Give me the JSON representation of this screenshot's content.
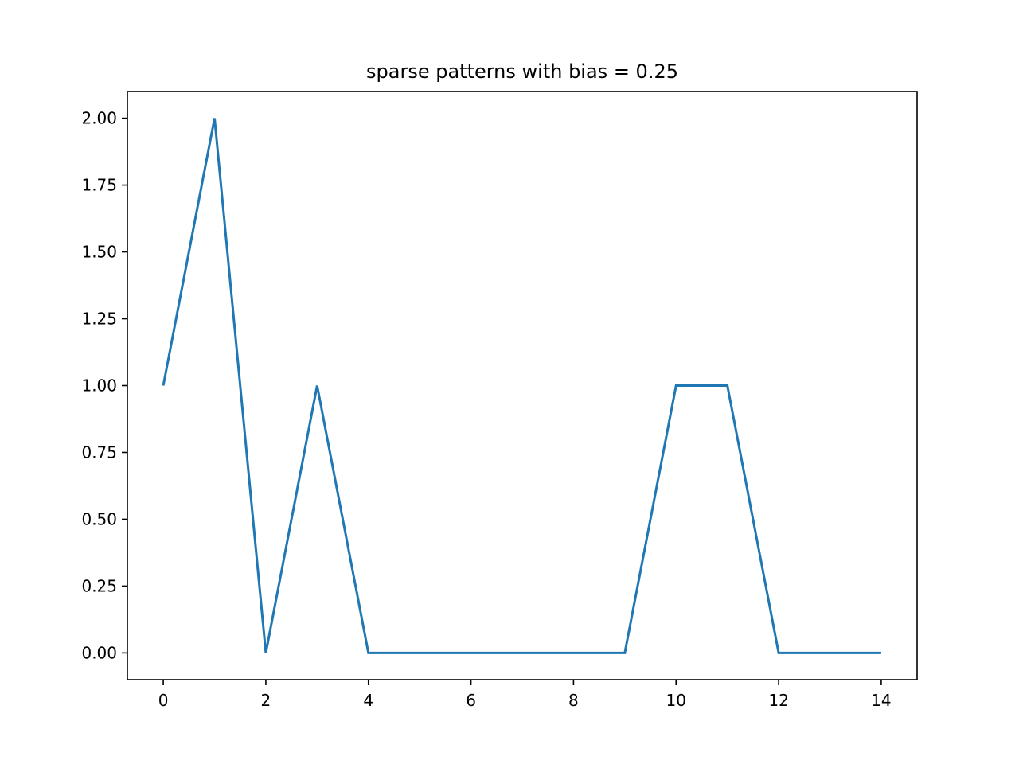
{
  "chart_data": {
    "type": "line",
    "title": "sparse patterns with bias = 0.25",
    "xlabel": "",
    "ylabel": "",
    "xlim": [
      -0.7,
      14.7
    ],
    "ylim": [
      -0.1,
      2.1
    ],
    "x_ticks": [
      0,
      2,
      4,
      6,
      8,
      10,
      12,
      14
    ],
    "x_tick_labels": [
      "0",
      "2",
      "4",
      "6",
      "8",
      "10",
      "12",
      "14"
    ],
    "y_ticks": [
      0,
      0.25,
      0.5,
      0.75,
      1.0,
      1.25,
      1.5,
      1.75,
      2.0
    ],
    "y_tick_labels": [
      "0.00",
      "0.25",
      "0.50",
      "0.75",
      "1.00",
      "1.25",
      "1.50",
      "1.75",
      "2.00"
    ],
    "grid": false,
    "series": [
      {
        "color": "#1f77b4",
        "x": [
          0,
          1,
          2,
          3,
          4,
          5,
          6,
          7,
          8,
          9,
          10,
          11,
          12,
          13,
          14
        ],
        "y": [
          1,
          2,
          0,
          1,
          0,
          0,
          0,
          0,
          0,
          0,
          1,
          1,
          0,
          0,
          0
        ]
      }
    ]
  }
}
